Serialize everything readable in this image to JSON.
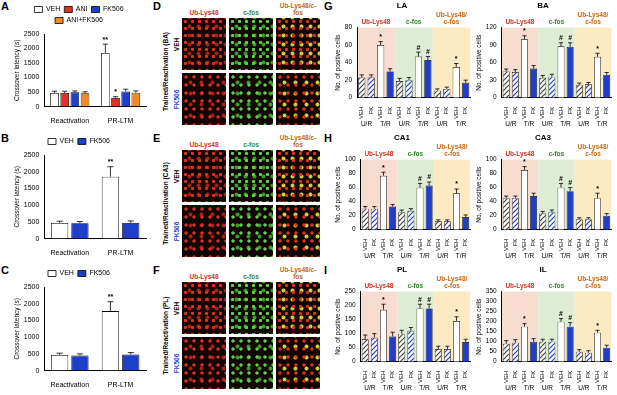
{
  "chart_data": [
    {
      "panel": "A",
      "type": "bar",
      "ylabel": "Crossover latency (s)",
      "categories": [
        "Reactivation",
        "PR-LTM"
      ],
      "ylim": [
        0,
        2500
      ],
      "yticks": [
        0,
        500,
        1000,
        1500,
        2000,
        2500
      ],
      "grid": false,
      "legend": "top",
      "series": [
        {
          "name": "VEH",
          "color": "#ffffff",
          "values": [
            470,
            1850
          ],
          "errors": [
            60,
            300
          ],
          "annotations": [
            null,
            "**"
          ]
        },
        {
          "name": "ANI",
          "color": "#e0302a",
          "values": [
            470,
            300
          ],
          "errors": [
            60,
            40
          ],
          "annotations": [
            null,
            "*"
          ]
        },
        {
          "name": "FK506",
          "color": "#1f3ec9",
          "values": [
            490,
            520
          ],
          "errors": [
            50,
            80
          ],
          "annotations": [
            null,
            null
          ]
        },
        {
          "name": "ANI+FK506",
          "color": "#f08a24",
          "values": [
            460,
            480
          ],
          "errors": [
            50,
            60
          ],
          "annotations": [
            null,
            null
          ]
        }
      ]
    },
    {
      "panel": "B",
      "type": "bar",
      "ylabel": "Crossover latency (s)",
      "categories": [
        "Reactivation",
        "PR-LTM"
      ],
      "ylim": [
        0,
        2500
      ],
      "yticks": [
        0,
        500,
        1000,
        1500,
        2000,
        2500
      ],
      "grid": false,
      "legend": "top",
      "series": [
        {
          "name": "VEH",
          "color": "#ffffff",
          "values": [
            470,
            1850
          ],
          "errors": [
            50,
            300
          ],
          "annotations": [
            null,
            "**"
          ]
        },
        {
          "name": "FK506",
          "color": "#1f3ec9",
          "values": [
            460,
            470
          ],
          "errors": [
            50,
            60
          ],
          "annotations": [
            null,
            null
          ]
        }
      ]
    },
    {
      "panel": "C",
      "type": "bar",
      "ylabel": "Crossover latency (s)",
      "categories": [
        "Reactivation",
        "PR-LTM"
      ],
      "ylim": [
        0,
        2500
      ],
      "yticks": [
        0,
        500,
        1000,
        1500,
        2000,
        2500
      ],
      "grid": false,
      "legend": "top",
      "series": [
        {
          "name": "VEH",
          "color": "#ffffff",
          "values": [
            470,
            1780
          ],
          "errors": [
            50,
            280
          ],
          "annotations": [
            null,
            "**"
          ]
        },
        {
          "name": "FK506",
          "color": "#1f3ec9",
          "values": [
            450,
            480
          ],
          "errors": [
            50,
            60
          ],
          "annotations": [
            null,
            null
          ]
        }
      ]
    },
    {
      "panel": "G",
      "type": "bar",
      "title": "LA",
      "ylabel": "No. of positive cells",
      "grid": false,
      "groups": [
        {
          "name": "Ub-Lys48",
          "color": "#d4301f"
        },
        {
          "name": "c-fos",
          "color": "#2f8a28"
        },
        {
          "name": "Ub-Lys48/c-fos",
          "color": "#c8680a"
        }
      ],
      "subgroups": [
        "U/R",
        "T/R"
      ],
      "categories": [
        "VEH",
        "FK",
        "VEH",
        "FK",
        "VEH",
        "FK",
        "VEH",
        "FK",
        "VEH",
        "FK",
        "VEH",
        "FK"
      ],
      "values": [
        23,
        23,
        60,
        30,
        19,
        20,
        47,
        43,
        8,
        10,
        35,
        17
      ],
      "errors": [
        3,
        3,
        4,
        3,
        3,
        3,
        5,
        4,
        2,
        2,
        4,
        3
      ],
      "colors": [
        "#ffffff",
        "#1f3ec9",
        "#ffffff",
        "#1f3ec9",
        "#ffffff",
        "#1f3ec9",
        "#ffffff",
        "#1f3ec9",
        "#ffffff",
        "#1f3ec9",
        "#ffffff",
        "#1f3ec9"
      ],
      "annotations": [
        null,
        null,
        "*",
        null,
        null,
        null,
        "#",
        "#",
        null,
        null,
        "*",
        null
      ],
      "ylim": [
        0,
        80
      ],
      "yticks": [
        0,
        20,
        40,
        60,
        80
      ]
    },
    {
      "type": "bar",
      "title": "BA",
      "ylabel": "No. of positive cells",
      "grid": false,
      "groups": [
        {
          "name": "Ub-Lys48",
          "color": "#d4301f"
        },
        {
          "name": "c-fos",
          "color": "#2f8a28"
        },
        {
          "name": "Ub-Lys48/c-fos",
          "color": "#c8680a"
        }
      ],
      "subgroups": [
        "U/R",
        "T/R"
      ],
      "categories": [
        "VEH",
        "FK",
        "VEH",
        "FK",
        "VEH",
        "FK",
        "VEH",
        "FK",
        "VEH",
        "FK",
        "VEH",
        "FK"
      ],
      "values": [
        45,
        44,
        100,
        50,
        34,
        36,
        88,
        87,
        22,
        23,
        70,
        39
      ],
      "errors": [
        4,
        4,
        6,
        5,
        4,
        4,
        6,
        7,
        3,
        3,
        6,
        4
      ],
      "colors": [
        "#ffffff",
        "#1f3ec9",
        "#ffffff",
        "#1f3ec9",
        "#ffffff",
        "#1f3ec9",
        "#ffffff",
        "#1f3ec9",
        "#ffffff",
        "#1f3ec9",
        "#ffffff",
        "#1f3ec9"
      ],
      "annotations": [
        null,
        null,
        "*",
        null,
        null,
        null,
        "#",
        "#",
        null,
        null,
        "*",
        null
      ],
      "ylim": [
        0,
        120
      ],
      "yticks": [
        0,
        30,
        60,
        90,
        120
      ]
    },
    {
      "panel": "H",
      "type": "bar",
      "title": "CA1",
      "ylabel": "No. of positive cells",
      "grid": false,
      "groups": [
        {
          "name": "Ub-Lys48",
          "color": "#d4301f"
        },
        {
          "name": "c-fos",
          "color": "#2f8a28"
        },
        {
          "name": "Ub-Lys48/c-fos",
          "color": "#c8680a"
        }
      ],
      "subgroups": [
        "U/R",
        "T/R"
      ],
      "categories": [
        "VEH",
        "FK",
        "VEH",
        "FK",
        "VEH",
        "FK",
        "VEH",
        "FK",
        "VEH",
        "FK",
        "VEH",
        "FK"
      ],
      "values": [
        30,
        30,
        77,
        33,
        25,
        27,
        60,
        63,
        12,
        12,
        52,
        18
      ],
      "errors": [
        3,
        3,
        5,
        3,
        3,
        3,
        6,
        5,
        2,
        2,
        6,
        3
      ],
      "colors": [
        "#ffffff",
        "#1f3ec9",
        "#ffffff",
        "#1f3ec9",
        "#ffffff",
        "#1f3ec9",
        "#ffffff",
        "#1f3ec9",
        "#ffffff",
        "#1f3ec9",
        "#ffffff",
        "#1f3ec9"
      ],
      "annotations": [
        null,
        null,
        "*",
        null,
        null,
        null,
        "#",
        "#",
        null,
        null,
        "*",
        null
      ],
      "ylim": [
        0,
        100
      ],
      "yticks": [
        0,
        20,
        40,
        60,
        80,
        100
      ]
    },
    {
      "type": "bar",
      "title": "CA3",
      "ylabel": "No. of positive cells",
      "grid": false,
      "groups": [
        {
          "name": "Ub-Lys48",
          "color": "#d4301f"
        },
        {
          "name": "c-fos",
          "color": "#2f8a28"
        },
        {
          "name": "Ub-Lys48/c-fos",
          "color": "#c8680a"
        }
      ],
      "subgroups": [
        "U/R",
        "T/R"
      ],
      "categories": [
        "VEH",
        "FK",
        "VEH",
        "FK",
        "VEH",
        "FK",
        "VEH",
        "FK",
        "VEH",
        "FK",
        "VEH",
        "FK"
      ],
      "values": [
        45,
        45,
        85,
        48,
        23,
        25,
        60,
        55,
        15,
        15,
        45,
        20
      ],
      "errors": [
        3,
        3,
        5,
        4,
        3,
        3,
        6,
        5,
        2,
        2,
        7,
        3
      ],
      "colors": [
        "#ffffff",
        "#1f3ec9",
        "#ffffff",
        "#1f3ec9",
        "#ffffff",
        "#1f3ec9",
        "#ffffff",
        "#1f3ec9",
        "#ffffff",
        "#1f3ec9",
        "#ffffff",
        "#1f3ec9"
      ],
      "annotations": [
        null,
        null,
        "*",
        null,
        null,
        null,
        "#",
        "#",
        null,
        null,
        "*",
        null
      ],
      "ylim": [
        0,
        100
      ],
      "yticks": [
        0,
        20,
        40,
        60,
        80,
        100
      ]
    },
    {
      "panel": "I",
      "type": "bar",
      "title": "PL",
      "ylabel": "No. of positive cells",
      "grid": false,
      "groups": [
        {
          "name": "Ub-Lys48",
          "color": "#d4301f"
        },
        {
          "name": "c-fos",
          "color": "#2f8a28"
        },
        {
          "name": "Ub-Lys48/c-fos",
          "color": "#c8680a"
        }
      ],
      "subgroups": [
        "U/R",
        "T/R"
      ],
      "categories": [
        "VEH",
        "FK",
        "VEH",
        "FK",
        "VEH",
        "FK",
        "VEH",
        "FK",
        "VEH",
        "FK",
        "VEH",
        "FK"
      ],
      "values": [
        80,
        85,
        185,
        90,
        100,
        110,
        190,
        190,
        45,
        45,
        145,
        70
      ],
      "errors": [
        15,
        15,
        20,
        15,
        12,
        12,
        15,
        15,
        10,
        10,
        15,
        10
      ],
      "colors": [
        "#ffffff",
        "#1f3ec9",
        "#ffffff",
        "#1f3ec9",
        "#ffffff",
        "#1f3ec9",
        "#ffffff",
        "#1f3ec9",
        "#ffffff",
        "#1f3ec9",
        "#ffffff",
        "#1f3ec9"
      ],
      "annotations": [
        null,
        null,
        "*",
        null,
        null,
        null,
        "#",
        "#",
        null,
        null,
        "*",
        null
      ],
      "ylim": [
        0,
        250
      ],
      "yticks": [
        0,
        50,
        100,
        150,
        200,
        250
      ]
    },
    {
      "type": "bar",
      "title": "IL",
      "ylabel": "No. of positive cells",
      "grid": false,
      "groups": [
        {
          "name": "Ub-Lys48",
          "color": "#d4301f"
        },
        {
          "name": "c-fos",
          "color": "#2f8a28"
        },
        {
          "name": "Ub-Lys48/c-fos",
          "color": "#c8680a"
        }
      ],
      "subgroups": [
        "U/R",
        "T/R"
      ],
      "categories": [
        "VEH",
        "FK",
        "VEH",
        "FK",
        "VEH",
        "FK",
        "VEH",
        "FK",
        "VEH",
        "FK",
        "VEH",
        "FK"
      ],
      "values": [
        90,
        95,
        175,
        100,
        100,
        100,
        200,
        175,
        50,
        45,
        145,
        70
      ],
      "errors": [
        15,
        15,
        15,
        15,
        12,
        12,
        15,
        20,
        10,
        10,
        12,
        12
      ],
      "colors": [
        "#ffffff",
        "#1f3ec9",
        "#ffffff",
        "#1f3ec9",
        "#ffffff",
        "#1f3ec9",
        "#ffffff",
        "#1f3ec9",
        "#ffffff",
        "#1f3ec9",
        "#ffffff",
        "#1f3ec9"
      ],
      "annotations": [
        null,
        null,
        "*",
        null,
        null,
        null,
        "#",
        "#",
        null,
        null,
        "*",
        null
      ],
      "ylim": [
        0,
        350
      ],
      "yticks": [
        0,
        50,
        100,
        150,
        200,
        250,
        300,
        350
      ]
    }
  ],
  "micrographs": [
    {
      "panel": "D",
      "label": "Trained/Reactivation (BA)",
      "columns": [
        {
          "label": "Ub-Lys48",
          "color": "#d4301f"
        },
        {
          "label": "c-fos",
          "color": "#2f8a28"
        },
        {
          "label": "Ub-Lys48/c-fos",
          "color": "#c8680a"
        }
      ],
      "rows": [
        {
          "label": "VEH",
          "color": "#000000"
        },
        {
          "label": "FK506",
          "color": "#1f3ec9"
        }
      ]
    },
    {
      "panel": "E",
      "label": "Trained/Reactivation (CA3)",
      "columns": [
        {
          "label": "Ub-Lys48",
          "color": "#d4301f"
        },
        {
          "label": "c-fos",
          "color": "#2f8a28"
        },
        {
          "label": "Ub-Lys48/c-fos",
          "color": "#c8680a"
        }
      ],
      "rows": [
        {
          "label": "VEH",
          "color": "#000000"
        },
        {
          "label": "FK506",
          "color": "#1f3ec9"
        }
      ]
    },
    {
      "panel": "F",
      "label": "Trained/Reactivation (PL)",
      "columns": [
        {
          "label": "Ub-Lys48",
          "color": "#d4301f"
        },
        {
          "label": "c-fos",
          "color": "#2f8a28"
        },
        {
          "label": "Ub-Lys48/c-fos",
          "color": "#c8680a"
        }
      ],
      "rows": [
        {
          "label": "VEH",
          "color": "#000000"
        },
        {
          "label": "FK506",
          "color": "#1f3ec9"
        }
      ]
    }
  ]
}
